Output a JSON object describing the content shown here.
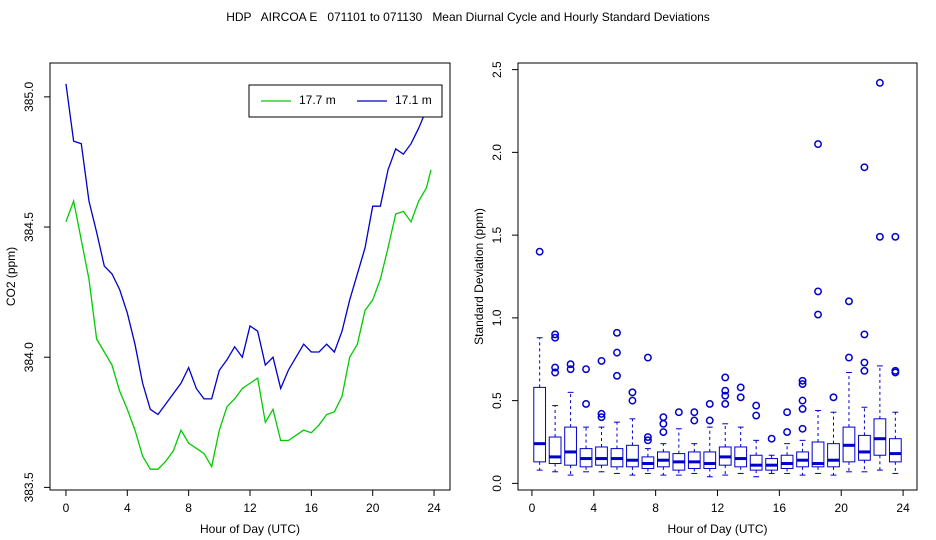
{
  "title": "HDP   AIRCOA E   071101 to 071130   Mean Diurnal Cycle and Hourly Standard Deviations",
  "chart_data": [
    {
      "type": "line",
      "x_label": "Hour of Day (UTC)",
      "y_label": "CO2 (ppm)",
      "x": [
        0,
        0.5,
        1,
        1.5,
        2,
        2.5,
        3,
        3.5,
        4,
        4.5,
        5,
        5.5,
        6,
        6.5,
        7,
        7.5,
        8,
        8.5,
        9,
        9.5,
        10,
        10.5,
        11,
        11.5,
        12,
        12.5,
        13,
        13.5,
        14,
        14.5,
        15,
        15.5,
        16,
        16.5,
        17,
        17.5,
        18,
        18.5,
        19,
        19.5,
        20,
        20.5,
        21,
        21.5,
        22,
        22.5,
        23,
        23.5,
        23.8
      ],
      "series": [
        {
          "name": "17.7 m",
          "color": "#00cc00",
          "values": [
            384.52,
            384.6,
            384.45,
            384.3,
            384.07,
            384.02,
            383.97,
            383.87,
            383.8,
            383.72,
            383.62,
            383.57,
            383.57,
            383.6,
            383.64,
            383.72,
            383.67,
            383.65,
            383.63,
            383.58,
            383.72,
            383.81,
            383.84,
            383.88,
            383.9,
            383.92,
            383.75,
            383.8,
            383.68,
            383.68,
            383.7,
            383.72,
            383.71,
            383.74,
            383.78,
            383.79,
            383.85,
            384.0,
            384.05,
            384.18,
            384.22,
            384.3,
            384.42,
            384.55,
            384.56,
            384.52,
            384.6,
            384.65,
            384.72
          ]
        },
        {
          "name": "17.1 m",
          "color": "#0000cc",
          "values": [
            385.05,
            384.83,
            384.82,
            384.6,
            384.48,
            384.35,
            384.32,
            384.26,
            384.17,
            384.05,
            383.9,
            383.8,
            383.78,
            383.82,
            383.86,
            383.9,
            383.96,
            383.88,
            383.84,
            383.84,
            383.95,
            383.99,
            384.04,
            384.0,
            384.12,
            384.1,
            383.97,
            384.0,
            383.88,
            383.95,
            384.0,
            384.05,
            384.02,
            384.02,
            384.05,
            384.02,
            384.1,
            384.22,
            384.32,
            384.42,
            384.58,
            384.58,
            384.72,
            384.8,
            384.78,
            384.82,
            384.88,
            384.95,
            385.04
          ]
        }
      ],
      "xlim": [
        -1.04,
        25.04
      ],
      "xticks": [
        0,
        4,
        8,
        12,
        16,
        20,
        24
      ],
      "ylim": [
        383.49,
        385.13
      ],
      "yticks": [
        383.5,
        {
          "value": 384.0,
          "label": "384.0"
        },
        384.5,
        {
          "value": 385.0,
          "label": "385.0"
        }
      ],
      "legend": "topright"
    },
    {
      "type": "box",
      "x_label": "Hour of Day (UTC)",
      "y_label": "Standard Deviation (ppm)",
      "color": "#0000cc",
      "x": [
        0.5,
        1.5,
        2.5,
        3.5,
        4.5,
        5.5,
        6.5,
        7.5,
        8.5,
        9.5,
        10.5,
        11.5,
        12.5,
        13.5,
        14.5,
        15.5,
        16.5,
        17.5,
        18.5,
        19.5,
        20.5,
        21.5,
        22.5,
        23.5
      ],
      "whisker_low": [
        0.08,
        0.07,
        0.05,
        0.07,
        0.07,
        0.06,
        0.05,
        0.06,
        0.05,
        0.05,
        0.06,
        0.04,
        0.05,
        0.06,
        0.04,
        0.06,
        0.06,
        0.05,
        0.06,
        0.05,
        0.07,
        0.07,
        0.08,
        0.06
      ],
      "q1": [
        0.13,
        0.12,
        0.11,
        0.1,
        0.11,
        0.1,
        0.1,
        0.09,
        0.1,
        0.08,
        0.09,
        0.09,
        0.11,
        0.1,
        0.08,
        0.08,
        0.09,
        0.1,
        0.1,
        0.1,
        0.13,
        0.14,
        0.17,
        0.13
      ],
      "median": [
        0.24,
        0.16,
        0.19,
        0.15,
        0.15,
        0.15,
        0.14,
        0.12,
        0.14,
        0.13,
        0.13,
        0.12,
        0.16,
        0.15,
        0.11,
        0.11,
        0.12,
        0.14,
        0.12,
        0.14,
        0.23,
        0.19,
        0.27,
        0.18
      ],
      "q3": [
        0.58,
        0.28,
        0.34,
        0.21,
        0.22,
        0.21,
        0.23,
        0.16,
        0.19,
        0.18,
        0.19,
        0.19,
        0.22,
        0.22,
        0.17,
        0.15,
        0.17,
        0.19,
        0.25,
        0.24,
        0.34,
        0.29,
        0.39,
        0.27
      ],
      "whisker_high": [
        0.88,
        0.47,
        0.55,
        0.34,
        0.34,
        0.37,
        0.39,
        0.21,
        0.24,
        0.33,
        0.24,
        0.34,
        0.36,
        0.34,
        0.26,
        0.17,
        0.24,
        0.26,
        0.44,
        0.43,
        0.67,
        0.46,
        0.71,
        0.43
      ],
      "outliers": [
        [
          1.4
        ],
        [
          0.67,
          0.7,
          0.88,
          0.9
        ],
        [
          0.69,
          0.72
        ],
        [
          0.48,
          0.69
        ],
        [
          0.4,
          0.42,
          0.74
        ],
        [
          0.65,
          0.79,
          0.91
        ],
        [
          0.5,
          0.55
        ],
        [
          0.26,
          0.28,
          0.76
        ],
        [
          0.31,
          0.36,
          0.4
        ],
        [
          0.43
        ],
        [
          0.38,
          0.43
        ],
        [
          0.38,
          0.48
        ],
        [
          0.48,
          0.53,
          0.56,
          0.64
        ],
        [
          0.52,
          0.58
        ],
        [
          0.41,
          0.47
        ],
        [
          0.27
        ],
        [
          0.31,
          0.43
        ],
        [
          0.33,
          0.45,
          0.5,
          0.6,
          0.62
        ],
        [
          1.02,
          1.16,
          2.05
        ],
        [
          0.52
        ],
        [
          0.76,
          1.1
        ],
        [
          0.68,
          0.73,
          0.9,
          1.91
        ],
        [
          1.49,
          2.42
        ],
        [
          0.67,
          0.68,
          1.49
        ]
      ],
      "xlim": [
        -0.9,
        24.9
      ],
      "xticks": [
        0,
        4,
        8,
        12,
        16,
        20,
        24
      ],
      "ylim": [
        -0.04,
        2.54
      ],
      "yticks": [
        {
          "value": 0,
          "label": "0.0"
        },
        0.5,
        {
          "value": 1,
          "label": "1.0"
        },
        1.5,
        {
          "value": 2,
          "label": "2.0"
        },
        2.5
      ]
    }
  ]
}
